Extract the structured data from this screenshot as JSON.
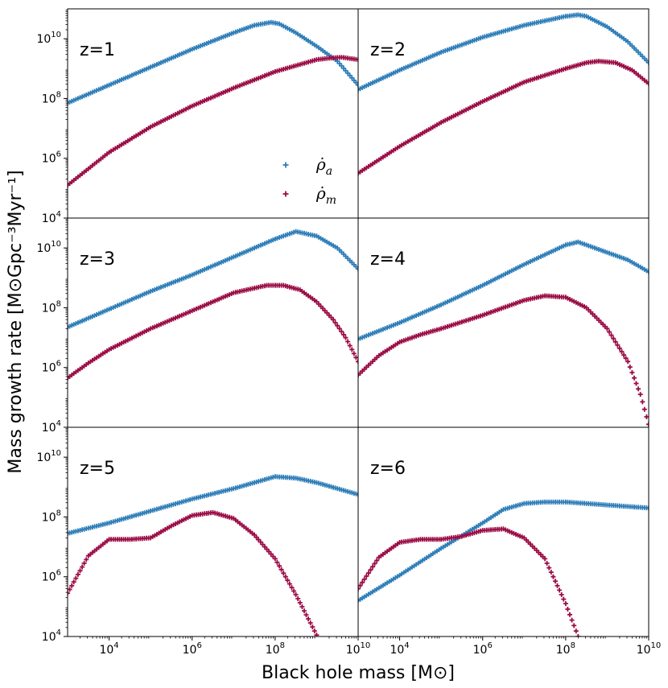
{
  "chart_data": {
    "type": "scatter",
    "xlabel": "Black hole mass [M⊙]",
    "ylabel": "Mass growth rate [M⊙Gpc⁻³Myr⁻¹]",
    "x_scale": "log",
    "y_scale": "log",
    "xlim": [
      1000,
      10000000000
    ],
    "ylim": [
      10000,
      100000000000
    ],
    "x_tick_labels": [
      {
        "base": "10",
        "exp": "4"
      },
      {
        "base": "10",
        "exp": "6"
      },
      {
        "base": "10",
        "exp": "8"
      },
      {
        "base": "10",
        "exp": "10"
      }
    ],
    "y_tick_labels": [
      {
        "base": "10",
        "exp": "4"
      },
      {
        "base": "10",
        "exp": "6"
      },
      {
        "base": "10",
        "exp": "8"
      },
      {
        "base": "10",
        "exp": "10"
      }
    ],
    "legend": {
      "placement": "lower-right of first panel",
      "entries": [
        {
          "label": "ρ̇a",
          "base": "ρ̇",
          "sub": "a",
          "color": "#2e7eb8"
        },
        {
          "label": "ρ̇m",
          "base": "ρ̇",
          "sub": "m",
          "color": "#9b0c45"
        }
      ]
    },
    "colors": {
      "rho_a": "#2e7eb8",
      "rho_m": "#9b0c45"
    },
    "panels": [
      {
        "label": "z=1",
        "rho_a": {
          "log_x": [
            3,
            4,
            5,
            6,
            7,
            7.5,
            7.9,
            8.1,
            8.5,
            9,
            9.5,
            10
          ],
          "log_y": [
            7.85,
            8.45,
            9.05,
            9.65,
            10.2,
            10.45,
            10.55,
            10.5,
            10.2,
            9.75,
            9.25,
            8.45
          ]
        },
        "rho_m": {
          "log_x": [
            3,
            3.5,
            4,
            5,
            6,
            7,
            8,
            8.5,
            9,
            9.3,
            9.6,
            10
          ],
          "log_y": [
            5.1,
            5.65,
            6.2,
            7.05,
            7.75,
            8.35,
            8.9,
            9.1,
            9.3,
            9.35,
            9.38,
            9.3
          ]
        }
      },
      {
        "label": "z=2",
        "rho_a": {
          "log_x": [
            3,
            4,
            5,
            6,
            7,
            8,
            8.3,
            8.5,
            9,
            9.5,
            10
          ],
          "log_y": [
            8.3,
            8.95,
            9.55,
            10.05,
            10.45,
            10.75,
            10.8,
            10.75,
            10.4,
            9.9,
            9.2
          ]
        },
        "rho_m": {
          "log_x": [
            3,
            3.5,
            4,
            5,
            6,
            7,
            8,
            8.5,
            8.8,
            9.2,
            9.6,
            10
          ],
          "log_y": [
            5.5,
            5.95,
            6.4,
            7.2,
            7.9,
            8.55,
            9.0,
            9.2,
            9.25,
            9.2,
            8.95,
            8.5
          ]
        }
      },
      {
        "label": "z=3",
        "rho_a": {
          "log_x": [
            3,
            4,
            5,
            6,
            7,
            8,
            8.5,
            9,
            9.5,
            10
          ],
          "log_y": [
            7.35,
            7.95,
            8.55,
            9.1,
            9.7,
            10.3,
            10.55,
            10.4,
            10.0,
            9.3
          ]
        },
        "rho_m": {
          "log_x": [
            3,
            3.5,
            4,
            5,
            6,
            7,
            7.8,
            8.2,
            8.6,
            9,
            9.4,
            9.7,
            10
          ],
          "log_y": [
            5.65,
            6.15,
            6.6,
            7.3,
            7.9,
            8.5,
            8.75,
            8.75,
            8.6,
            8.2,
            7.6,
            7.0,
            6.2
          ]
        }
      },
      {
        "label": "z=4",
        "rho_a": {
          "log_x": [
            3,
            4,
            5,
            6,
            7,
            8,
            8.3,
            9,
            9.5,
            10
          ],
          "log_y": [
            6.95,
            7.5,
            8.1,
            8.75,
            9.45,
            10.1,
            10.2,
            9.85,
            9.6,
            9.2
          ]
        },
        "rho_m": {
          "log_x": [
            3,
            3.5,
            4,
            4.5,
            5,
            6,
            7,
            7.5,
            8,
            8.5,
            9,
            9.5,
            9.8,
            10
          ],
          "log_y": [
            5.75,
            6.4,
            6.85,
            7.1,
            7.3,
            7.75,
            8.25,
            8.4,
            8.35,
            8.0,
            7.3,
            6.2,
            5.1,
            4.1
          ]
        }
      },
      {
        "label": "z=5",
        "rho_a": {
          "log_x": [
            3,
            4,
            5,
            6,
            7,
            7.5,
            8,
            8.5,
            9,
            10
          ],
          "log_y": [
            7.45,
            7.8,
            8.2,
            8.6,
            8.95,
            9.15,
            9.35,
            9.3,
            9.15,
            8.75
          ]
        },
        "rho_m": {
          "log_x": [
            3,
            3.5,
            4,
            4.5,
            5,
            5.5,
            6,
            6.5,
            7,
            7.5,
            8,
            8.5,
            9
          ],
          "log_y": [
            5.45,
            6.7,
            7.25,
            7.25,
            7.3,
            7.7,
            8.05,
            8.15,
            7.95,
            7.4,
            6.6,
            5.4,
            4.05
          ]
        }
      },
      {
        "label": "z=6",
        "rho_a": {
          "log_x": [
            3,
            4,
            5,
            6,
            6.5,
            7,
            7.5,
            8,
            8.5,
            9,
            10
          ],
          "log_y": [
            5.2,
            6.05,
            6.95,
            7.8,
            8.25,
            8.45,
            8.5,
            8.5,
            8.45,
            8.4,
            8.3
          ]
        },
        "rho_m": {
          "log_x": [
            3,
            3.5,
            4,
            4.5,
            5,
            5.5,
            6,
            6.5,
            7,
            7.5,
            8,
            8.3
          ],
          "log_y": [
            5.6,
            6.65,
            7.15,
            7.25,
            7.25,
            7.35,
            7.55,
            7.6,
            7.3,
            6.6,
            5.1,
            4.0
          ]
        }
      }
    ]
  }
}
